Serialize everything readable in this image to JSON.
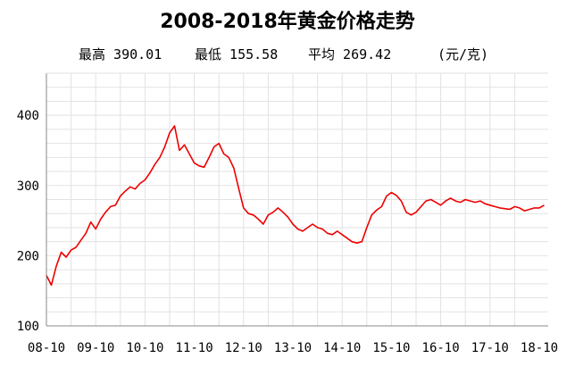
{
  "title": "2008-2018年黄金价格走势",
  "stats": {
    "max_label": "最高",
    "max_value": "390.01",
    "min_label": "最低",
    "min_value": "155.58",
    "avg_label": "平均",
    "avg_value": "269.42",
    "unit": "(元/克)"
  },
  "chart_data": {
    "type": "line",
    "title": "2008-2018年黄金价格走势",
    "xlabel": "",
    "ylabel": "",
    "ylim": [
      100,
      460
    ],
    "y_ticks": [
      100,
      200,
      300,
      400
    ],
    "x_ticks": [
      "08-10",
      "09-10",
      "10-10",
      "11-10",
      "12-10",
      "13-10",
      "14-10",
      "15-10",
      "16-10",
      "17-10",
      "18-10"
    ],
    "grid": true,
    "legend": "none",
    "series": [
      {
        "color": "#ee0000",
        "x": [
          0,
          0.1,
          0.2,
          0.3,
          0.4,
          0.5,
          0.6,
          0.7,
          0.8,
          0.9,
          1.0,
          1.1,
          1.2,
          1.3,
          1.4,
          1.5,
          1.6,
          1.7,
          1.8,
          1.9,
          2.0,
          2.1,
          2.2,
          2.3,
          2.4,
          2.5,
          2.6,
          2.7,
          2.8,
          2.9,
          3.0,
          3.1,
          3.2,
          3.3,
          3.4,
          3.5,
          3.6,
          3.7,
          3.8,
          3.9,
          4.0,
          4.1,
          4.2,
          4.3,
          4.4,
          4.5,
          4.6,
          4.7,
          4.8,
          4.9,
          5.0,
          5.1,
          5.2,
          5.3,
          5.4,
          5.5,
          5.6,
          5.7,
          5.8,
          5.9,
          6.0,
          6.1,
          6.2,
          6.3,
          6.4,
          6.5,
          6.6,
          6.7,
          6.8,
          6.9,
          7.0,
          7.1,
          7.2,
          7.3,
          7.4,
          7.5,
          7.6,
          7.7,
          7.8,
          7.9,
          8.0,
          8.1,
          8.2,
          8.3,
          8.4,
          8.5,
          8.6,
          8.7,
          8.8,
          8.9,
          9.0,
          9.1,
          9.2,
          9.3,
          9.4,
          9.5,
          9.6,
          9.7,
          9.8,
          9.9,
          10.0,
          10.1
        ],
        "values": [
          172,
          158,
          185,
          205,
          198,
          208,
          212,
          222,
          232,
          248,
          238,
          252,
          262,
          270,
          272,
          285,
          292,
          298,
          295,
          303,
          308,
          318,
          330,
          340,
          355,
          375,
          385,
          350,
          358,
          345,
          332,
          328,
          326,
          340,
          355,
          360,
          345,
          340,
          325,
          296,
          268,
          260,
          258,
          252,
          245,
          258,
          262,
          268,
          262,
          255,
          245,
          238,
          235,
          240,
          245,
          240,
          238,
          232,
          230,
          235,
          230,
          225,
          220,
          218,
          220,
          240,
          258,
          265,
          270,
          285,
          290,
          286,
          278,
          262,
          258,
          262,
          270,
          278,
          280,
          276,
          272,
          278,
          282,
          278,
          276,
          280,
          278,
          276,
          278,
          274,
          272,
          270,
          268,
          267,
          266,
          270,
          268,
          264,
          266,
          268,
          268,
          272
        ]
      }
    ]
  }
}
